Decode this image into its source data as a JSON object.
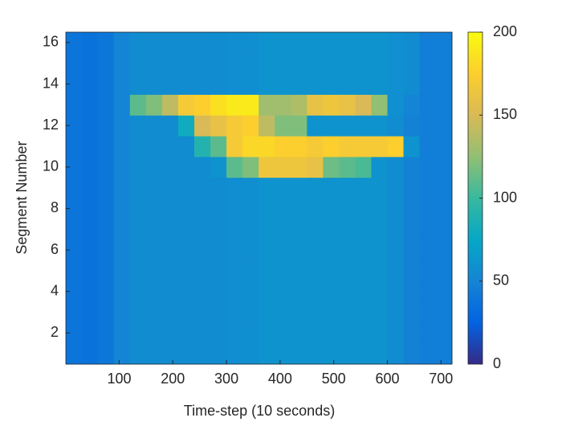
{
  "chart_data": {
    "type": "heatmap",
    "xlabel": "Time-step (10 seconds)",
    "ylabel": "Segment Number",
    "x": [
      15,
      45,
      75,
      105,
      135,
      165,
      195,
      225,
      255,
      285,
      315,
      345,
      375,
      405,
      435,
      465,
      495,
      525,
      555,
      585,
      615,
      645,
      675,
      705
    ],
    "y": [
      1,
      2,
      3,
      4,
      5,
      6,
      7,
      8,
      9,
      10,
      11,
      12,
      13,
      14,
      15,
      16
    ],
    "values": [
      [
        38,
        36,
        40,
        50,
        55,
        55,
        55,
        55,
        55,
        55,
        56,
        57,
        60,
        60,
        60,
        60,
        60,
        60,
        60,
        60,
        55,
        48,
        45,
        45
      ],
      [
        38,
        36,
        40,
        50,
        55,
        55,
        55,
        55,
        55,
        55,
        56,
        57,
        60,
        60,
        60,
        60,
        60,
        60,
        60,
        60,
        55,
        48,
        45,
        45
      ],
      [
        38,
        36,
        40,
        50,
        55,
        55,
        55,
        55,
        55,
        55,
        56,
        57,
        60,
        60,
        60,
        60,
        60,
        60,
        60,
        60,
        55,
        48,
        45,
        45
      ],
      [
        38,
        36,
        40,
        50,
        55,
        55,
        55,
        55,
        55,
        55,
        56,
        57,
        60,
        60,
        60,
        60,
        60,
        60,
        60,
        60,
        55,
        48,
        45,
        45
      ],
      [
        38,
        36,
        40,
        50,
        55,
        55,
        55,
        55,
        55,
        55,
        56,
        57,
        60,
        60,
        60,
        60,
        60,
        60,
        60,
        60,
        55,
        48,
        45,
        45
      ],
      [
        38,
        36,
        40,
        50,
        55,
        55,
        55,
        55,
        55,
        55,
        56,
        57,
        60,
        60,
        60,
        60,
        60,
        60,
        60,
        60,
        55,
        48,
        45,
        45
      ],
      [
        38,
        36,
        40,
        50,
        55,
        55,
        55,
        55,
        55,
        55,
        56,
        57,
        60,
        60,
        60,
        60,
        60,
        60,
        60,
        60,
        55,
        48,
        45,
        45
      ],
      [
        38,
        36,
        40,
        50,
        55,
        55,
        55,
        55,
        55,
        55,
        56,
        57,
        60,
        60,
        60,
        60,
        60,
        60,
        60,
        60,
        55,
        48,
        45,
        45
      ],
      [
        38,
        36,
        40,
        50,
        55,
        55,
        55,
        55,
        55,
        55,
        56,
        57,
        60,
        60,
        60,
        60,
        60,
        60,
        60,
        60,
        55,
        48,
        45,
        45
      ],
      [
        38,
        36,
        40,
        50,
        55,
        55,
        55,
        55,
        55,
        60,
        110,
        120,
        165,
        165,
        165,
        160,
        115,
        110,
        105,
        60,
        55,
        48,
        45,
        45
      ],
      [
        38,
        36,
        40,
        50,
        55,
        55,
        55,
        55,
        90,
        110,
        170,
        180,
        180,
        175,
        175,
        170,
        175,
        170,
        170,
        170,
        175,
        60,
        45,
        45
      ],
      [
        38,
        36,
        40,
        50,
        55,
        55,
        55,
        80,
        150,
        160,
        170,
        175,
        140,
        120,
        120,
        60,
        60,
        60,
        60,
        60,
        55,
        48,
        45,
        45
      ],
      [
        38,
        36,
        40,
        50,
        110,
        120,
        140,
        170,
        175,
        185,
        190,
        190,
        130,
        130,
        135,
        160,
        165,
        160,
        150,
        125,
        58,
        50,
        45,
        45
      ],
      [
        38,
        36,
        40,
        50,
        55,
        55,
        55,
        55,
        55,
        55,
        56,
        57,
        60,
        60,
        60,
        60,
        60,
        60,
        60,
        60,
        58,
        55,
        45,
        45
      ],
      [
        38,
        36,
        40,
        50,
        55,
        55,
        55,
        55,
        55,
        55,
        56,
        57,
        60,
        60,
        60,
        60,
        60,
        60,
        60,
        60,
        58,
        55,
        45,
        45
      ],
      [
        38,
        36,
        40,
        50,
        55,
        55,
        55,
        55,
        55,
        55,
        56,
        57,
        60,
        60,
        60,
        60,
        60,
        60,
        60,
        60,
        58,
        55,
        45,
        45
      ]
    ],
    "xlim": [
      0.5,
      720.5
    ],
    "ylim": [
      0.5,
      16.5
    ],
    "xticks": [
      100,
      200,
      300,
      400,
      500,
      600,
      700
    ],
    "yticks": [
      2,
      4,
      6,
      8,
      10,
      12,
      14,
      16
    ],
    "clim": [
      0,
      200
    ],
    "cticks": [
      0,
      50,
      100,
      150,
      200
    ],
    "colormap": [
      "#352a87",
      "#0363e1",
      "#1485d4",
      "#06a7c6",
      "#38b99e",
      "#92bf73",
      "#d9ba56",
      "#fcce2e",
      "#f9fb0e"
    ]
  }
}
